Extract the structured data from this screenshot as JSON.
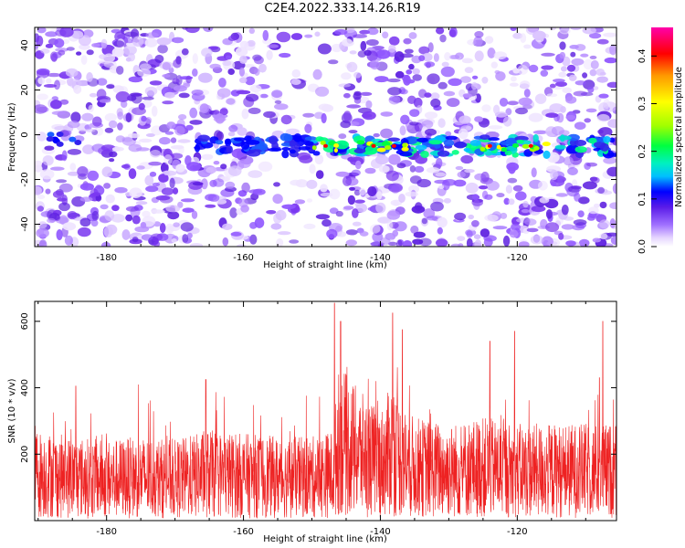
{
  "title": "C2E4.2022.333.14.26.R19",
  "colors": {
    "snr_line": "#ee2222",
    "colormap": [
      "#ffffff",
      "#e6d6ff",
      "#a070ff",
      "#5a1be8",
      "#0000ff",
      "#00bfff",
      "#00f0c0",
      "#00ff40",
      "#a0ff00",
      "#ffff00",
      "#ff9900",
      "#ff0000",
      "#ff00aa"
    ]
  },
  "chart_data": [
    {
      "type": "heatmap",
      "title": "",
      "xlabel": "Height of straight line (km)",
      "ylabel": "Frequency (Hz)",
      "colorbar_label": "Normalized spectral amplitude",
      "xlim": [
        -190.5,
        -105.5
      ],
      "ylim": [
        -50,
        48
      ],
      "clim": [
        0.0,
        0.46
      ],
      "xticks": [
        -180,
        -160,
        -140,
        -120
      ],
      "yticks": [
        -40,
        -20,
        0,
        20,
        40
      ],
      "cticks": [
        0.0,
        0.1,
        0.2,
        0.3,
        0.4
      ],
      "features": {
        "band_frequency_hz": -5,
        "band_start_km": -167,
        "band_end_km": -105.5,
        "strongest_km": [
          -148,
          -141,
          -138,
          -124,
          -118
        ]
      }
    },
    {
      "type": "line",
      "title": "",
      "xlabel": "Height of straight line (km)",
      "ylabel": "SNR (10 * v/v)",
      "xlim": [
        -190.5,
        -105.5
      ],
      "ylim": [
        0,
        660
      ],
      "xticks": [
        -180,
        -160,
        -140,
        -120
      ],
      "yticks": [
        200,
        400,
        600
      ],
      "series": [
        {
          "x": [
            -190,
            -185,
            -180,
            -175,
            -170,
            -165,
            -160,
            -155,
            -150,
            -147,
            -146,
            -143,
            -140,
            -138,
            -137,
            -135,
            -130,
            -125,
            -120,
            -115,
            -110,
            -106
          ],
          "y": [
            140,
            130,
            125,
            130,
            125,
            140,
            135,
            130,
            130,
            140,
            240,
            200,
            170,
            220,
            180,
            160,
            150,
            160,
            150,
            150,
            150,
            150
          ],
          "peaks": [
            {
              "x": -146.7,
              "y": 655
            },
            {
              "x": -145.8,
              "y": 600
            },
            {
              "x": -138.2,
              "y": 625
            },
            {
              "x": -136.8,
              "y": 575
            },
            {
              "x": -124.0,
              "y": 540
            },
            {
              "x": -120.4,
              "y": 570
            },
            {
              "x": -107.5,
              "y": 600
            },
            {
              "x": -165.5,
              "y": 425
            },
            {
              "x": -184.5,
              "y": 405
            },
            {
              "x": -108.0,
              "y": 430
            }
          ]
        }
      ]
    }
  ]
}
